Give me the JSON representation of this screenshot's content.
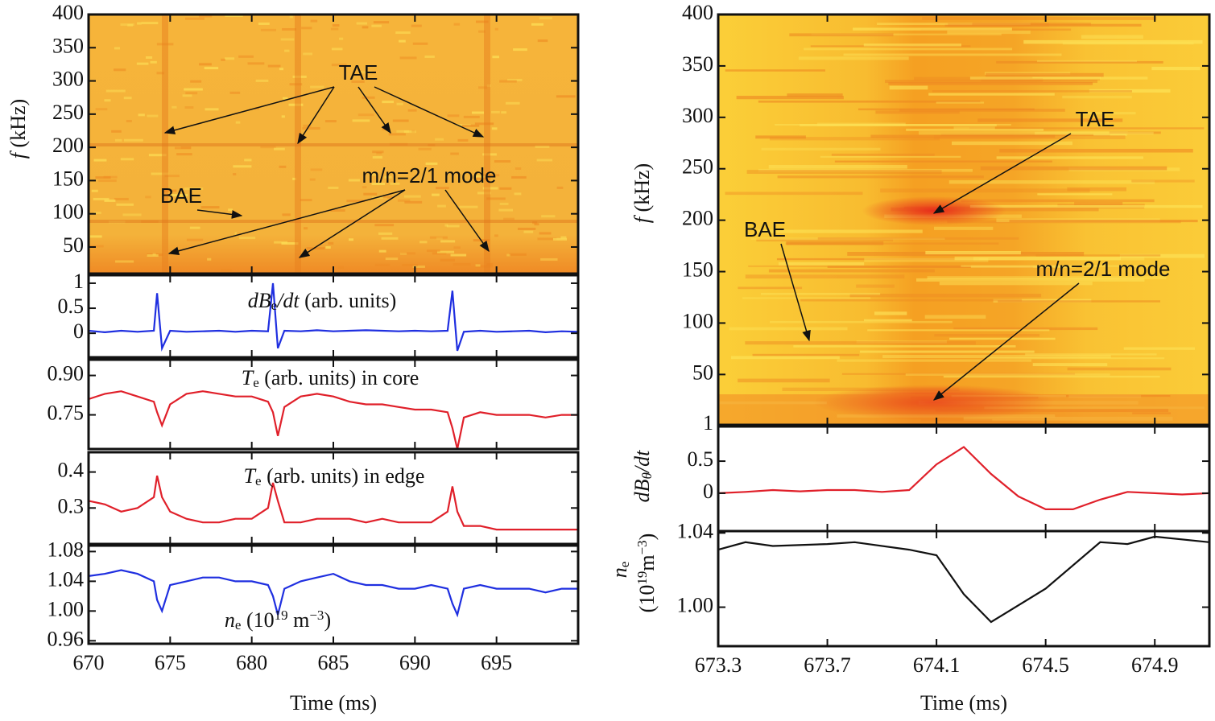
{
  "chart_data": [
    {
      "type": "spectrogram",
      "ylabel": [
        [
          {
            "text": "f",
            "style": "italic"
          },
          {
            "text": " (kHz)"
          }
        ]
      ],
      "xlim": [
        670,
        700
      ],
      "ylim": [
        10,
        400
      ],
      "yticks": [
        50,
        100,
        150,
        200,
        250,
        300,
        350,
        400
      ],
      "annotations": [
        {
          "text": "TAE"
        },
        {
          "text": "BAE"
        },
        {
          "text": "m/n=2/1 mode"
        }
      ]
    },
    {
      "type": "line",
      "label": [
        {
          "text": "dB",
          "style": "italic"
        },
        {
          "text": "e",
          "shift": "sub"
        },
        {
          "text": "/dt",
          "style": "italic"
        },
        {
          "text": " (arb. units)"
        }
      ],
      "xlim": [
        670,
        700
      ],
      "ylim": [
        -0.48,
        1.16
      ],
      "yticks": [
        0,
        0.5,
        1
      ],
      "series": [
        {
          "color": "#1f2fe0",
          "x": [
            670,
            671,
            672,
            673,
            674,
            674.2,
            674.5,
            675,
            676,
            677,
            678,
            679,
            680,
            681,
            681.3,
            681.6,
            682,
            683,
            684,
            685,
            686,
            687,
            688,
            689,
            690,
            691,
            692,
            692.3,
            692.6,
            693,
            694,
            695,
            696,
            697,
            698,
            699,
            700
          ],
          "values": [
            0.05,
            0.02,
            0.05,
            0.03,
            0.05,
            0.8,
            -0.3,
            0.05,
            0.03,
            0.04,
            0.05,
            0.03,
            0.05,
            0.04,
            1.0,
            -0.3,
            0.05,
            0.04,
            0.06,
            0.04,
            0.05,
            0.06,
            0.05,
            0.04,
            0.05,
            0.04,
            0.05,
            0.85,
            -0.35,
            0.03,
            0.05,
            0.03,
            0.04,
            0.05,
            0.02,
            0.04,
            0.03
          ]
        }
      ]
    },
    {
      "type": "line",
      "label": [
        {
          "text": "T",
          "style": "italic"
        },
        {
          "text": "e",
          "shift": "sub"
        },
        {
          "text": " (arb. units) in core"
        }
      ],
      "xlim": [
        670,
        700
      ],
      "ylim": [
        0.62,
        0.96
      ],
      "yticks": [
        0.75,
        {
          "value": 0.9,
          "label": "0.90"
        }
      ],
      "series": [
        {
          "color": "#e0202a",
          "x": [
            670,
            671,
            672,
            673,
            674,
            674.2,
            674.5,
            675,
            676,
            677,
            678,
            679,
            680,
            681,
            681.3,
            681.6,
            682,
            683,
            684,
            685,
            686,
            687,
            688,
            689,
            690,
            691,
            692,
            692.3,
            692.6,
            693,
            694,
            695,
            696,
            697,
            698,
            699,
            700
          ],
          "values": [
            0.81,
            0.83,
            0.84,
            0.82,
            0.8,
            0.76,
            0.71,
            0.79,
            0.83,
            0.84,
            0.83,
            0.82,
            0.82,
            0.8,
            0.76,
            0.67,
            0.78,
            0.82,
            0.83,
            0.82,
            0.8,
            0.79,
            0.79,
            0.78,
            0.77,
            0.77,
            0.76,
            0.7,
            0.62,
            0.74,
            0.76,
            0.75,
            0.75,
            0.75,
            0.74,
            0.75,
            0.75
          ]
        }
      ]
    },
    {
      "type": "line",
      "label": [
        {
          "text": "T",
          "style": "italic"
        },
        {
          "text": "e",
          "shift": "sub"
        },
        {
          "text": " (arb. units) in edge"
        }
      ],
      "xlim": [
        670,
        700
      ],
      "ylim": [
        0.2,
        0.455
      ],
      "yticks": [
        0.3,
        0.4
      ],
      "series": [
        {
          "color": "#e0202a",
          "x": [
            670,
            671,
            672,
            673,
            674,
            674.2,
            674.5,
            675,
            676,
            677,
            678,
            679,
            680,
            681,
            681.3,
            681.6,
            682,
            683,
            684,
            685,
            686,
            687,
            688,
            689,
            690,
            691,
            692,
            692.3,
            692.6,
            693,
            694,
            695,
            696,
            697,
            698,
            699,
            700
          ],
          "values": [
            0.32,
            0.31,
            0.29,
            0.3,
            0.33,
            0.39,
            0.33,
            0.29,
            0.27,
            0.26,
            0.26,
            0.27,
            0.27,
            0.3,
            0.37,
            0.32,
            0.26,
            0.26,
            0.27,
            0.27,
            0.27,
            0.26,
            0.27,
            0.26,
            0.26,
            0.26,
            0.29,
            0.36,
            0.29,
            0.25,
            0.25,
            0.24,
            0.24,
            0.24,
            0.24,
            0.24,
            0.24
          ]
        }
      ]
    },
    {
      "type": "line",
      "label": [
        {
          "text": "n",
          "style": "italic"
        },
        {
          "text": "e",
          "shift": "sub"
        },
        {
          "text": " (10"
        },
        {
          "text": "19",
          "shift": "sup"
        },
        {
          "text": " m"
        },
        {
          "text": "−3",
          "shift": "sup"
        },
        {
          "text": ")"
        }
      ],
      "xlim": [
        670,
        700
      ],
      "ylim": [
        0.956,
        1.088
      ],
      "yticks": [
        0.96,
        {
          "value": 1.0,
          "label": "1.00"
        },
        1.04,
        1.08
      ],
      "xticks": [
        670,
        675,
        680,
        685,
        690,
        695
      ],
      "xlabel": "Time (ms)",
      "series": [
        {
          "color": "#1f2fe0",
          "x": [
            670,
            671,
            672,
            673,
            674,
            674.2,
            674.5,
            675,
            676,
            677,
            678,
            679,
            680,
            681,
            681.3,
            681.6,
            682,
            683,
            684,
            685,
            686,
            687,
            688,
            689,
            690,
            691,
            692,
            692.3,
            692.6,
            693,
            694,
            695,
            696,
            697,
            698,
            699,
            700
          ],
          "values": [
            1.047,
            1.05,
            1.055,
            1.05,
            1.04,
            1.015,
            1.0,
            1.035,
            1.04,
            1.045,
            1.045,
            1.04,
            1.04,
            1.035,
            1.02,
            0.995,
            1.03,
            1.04,
            1.045,
            1.05,
            1.04,
            1.035,
            1.035,
            1.03,
            1.03,
            1.035,
            1.03,
            1.01,
            0.995,
            1.03,
            1.035,
            1.03,
            1.03,
            1.03,
            1.025,
            1.03,
            1.03
          ]
        }
      ]
    },
    {
      "type": "spectrogram",
      "ylabel": [
        [
          {
            "text": "f",
            "style": "italic"
          },
          {
            "text": " (kHz)"
          }
        ]
      ],
      "xlim": [
        673.3,
        675.1
      ],
      "ylim": [
        1,
        400
      ],
      "yticks": [
        1,
        50,
        100,
        150,
        200,
        250,
        300,
        350,
        400
      ],
      "annotations": [
        {
          "text": "TAE"
        },
        {
          "text": "BAE"
        },
        {
          "text": "m/n=2/1 mode"
        }
      ]
    },
    {
      "type": "line",
      "ylabel": [
        [
          {
            "text": "dB",
            "style": "italic"
          },
          {
            "text": "θ",
            "shift": "sub",
            "style": "italic"
          },
          {
            "text": "/dt",
            "style": "italic"
          }
        ]
      ],
      "xlim": [
        673.3,
        675.1
      ],
      "ylim": [
        -0.59,
        1.04
      ],
      "yticks": [
        0,
        0.5
      ],
      "series": [
        {
          "color": "#e0202a",
          "x": [
            673.3,
            673.4,
            673.5,
            673.6,
            673.7,
            673.8,
            673.9,
            674.0,
            674.1,
            674.2,
            674.3,
            674.4,
            674.5,
            674.6,
            674.7,
            674.8,
            674.9,
            675.0,
            675.1
          ],
          "values": [
            0,
            0.02,
            0.05,
            0.03,
            0.05,
            0.05,
            0.02,
            0.05,
            0.45,
            0.72,
            0.3,
            -0.05,
            -0.25,
            -0.25,
            -0.1,
            0.02,
            0,
            -0.02,
            0
          ]
        }
      ]
    },
    {
      "type": "line",
      "ylabel": [
        [
          {
            "text": "n",
            "style": "italic"
          },
          {
            "text": "e",
            "shift": "sub"
          }
        ],
        [
          {
            "text": "(10"
          },
          {
            "text": "19",
            "shift": "sup"
          },
          {
            "text": "m"
          },
          {
            "text": "−3",
            "shift": "sup"
          },
          {
            "text": ")"
          }
        ]
      ],
      "xlim": [
        673.3,
        675.1
      ],
      "ylim": [
        0.979,
        1.041
      ],
      "yticks": [
        {
          "value": 1.0,
          "label": "1.00"
        },
        1.04
      ],
      "xticks": [
        673.3,
        673.7,
        674.1,
        674.5,
        674.9
      ],
      "xlabel": "Time (ms)",
      "series": [
        {
          "color": "#111111",
          "x": [
            673.3,
            673.4,
            673.5,
            673.7,
            673.8,
            674.0,
            674.1,
            674.2,
            674.3,
            674.5,
            674.7,
            674.8,
            674.9,
            675.1
          ],
          "values": [
            1.031,
            1.035,
            1.033,
            1.034,
            1.035,
            1.031,
            1.028,
            1.007,
            0.992,
            1.01,
            1.035,
            1.034,
            1.038,
            1.035
          ]
        }
      ]
    }
  ]
}
